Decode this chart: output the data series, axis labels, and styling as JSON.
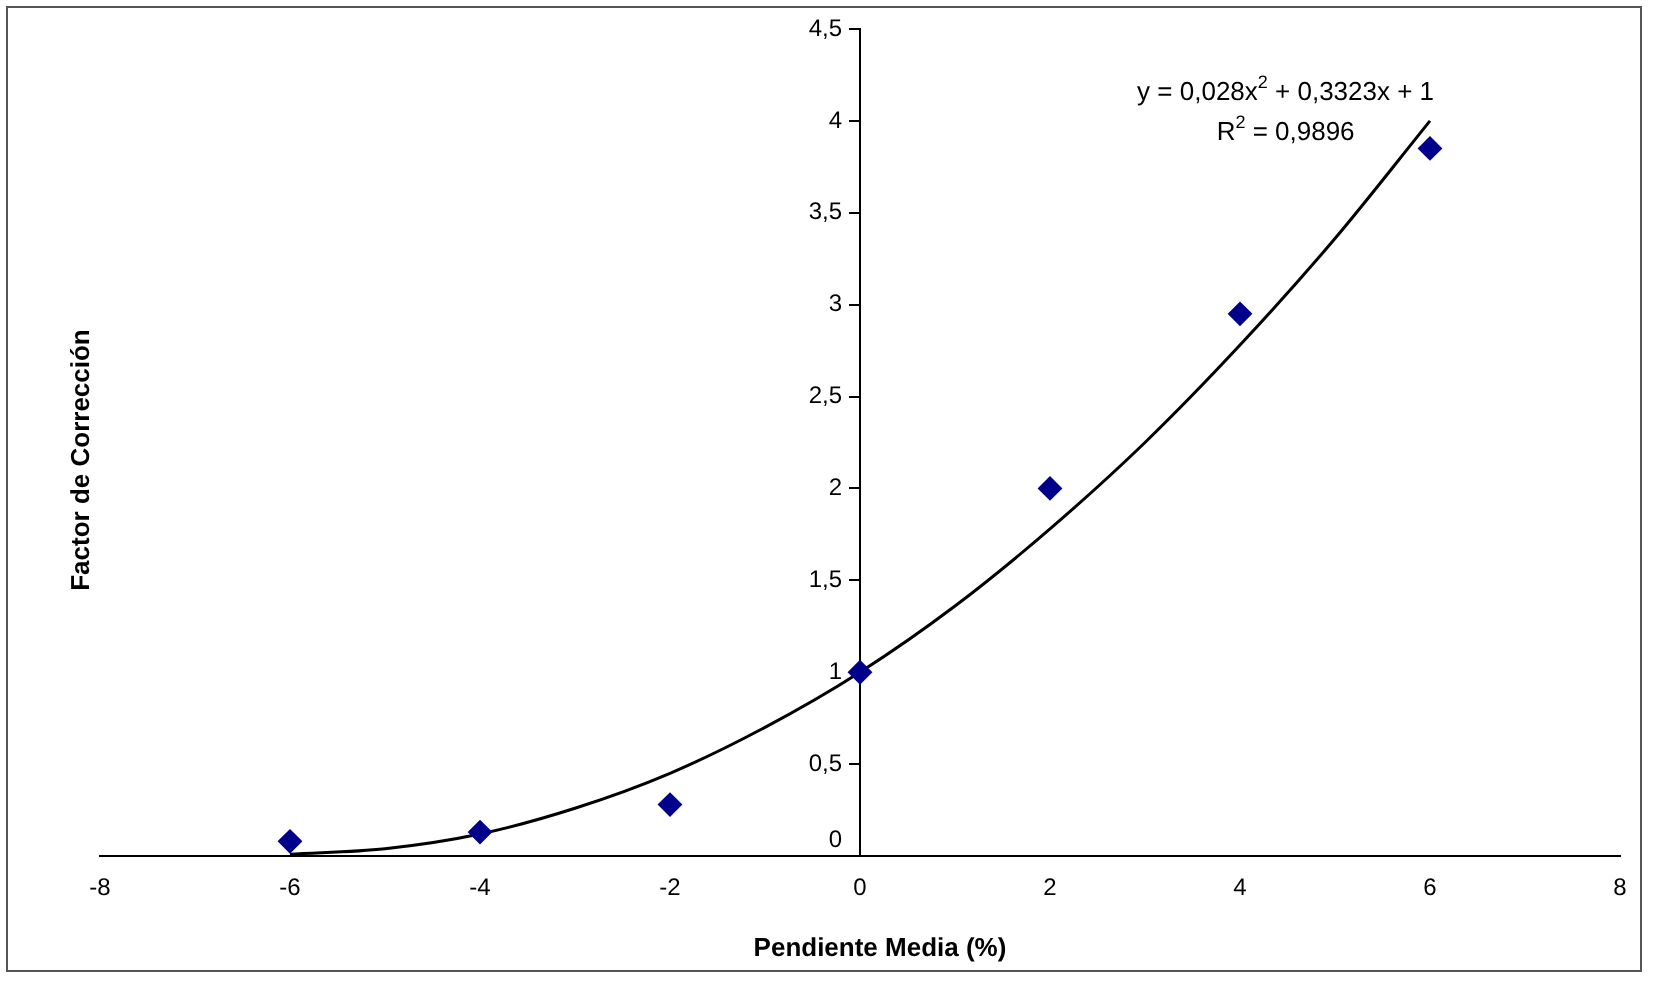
{
  "chart_data": {
    "type": "scatter",
    "xlabel": "Pendiente Media (%)",
    "ylabel": "Factor de Corrección",
    "xlim": [
      -8,
      8
    ],
    "xticks": [
      -8,
      -6,
      -4,
      -2,
      0,
      2,
      4,
      6,
      8
    ],
    "ylim": [
      0,
      4.5
    ],
    "yticks": [
      {
        "value": 0,
        "label": "0"
      },
      {
        "value": 0.5,
        "label": "0,5"
      },
      {
        "value": 1,
        "label": "1"
      },
      {
        "value": 1.5,
        "label": "1,5"
      },
      {
        "value": 2,
        "label": "2"
      },
      {
        "value": 2.5,
        "label": "2,5"
      },
      {
        "value": 3,
        "label": "3"
      },
      {
        "value": 3.5,
        "label": "3,5"
      },
      {
        "value": 4,
        "label": "4"
      },
      {
        "value": 4.5,
        "label": "4,5"
      }
    ],
    "grid": false,
    "legend": false,
    "annotations": [
      "y = 0,028x$^{2}$ + 0,3323x + 1",
      "R$^{2}$ = 0,9896"
    ],
    "series": [
      {
        "color": "#00008b",
        "marker": "diamond",
        "x": [
          -6,
          -4,
          -2,
          0,
          2,
          4,
          6
        ],
        "values": [
          0.08,
          0.13,
          0.28,
          1.0,
          2.0,
          2.95,
          3.85
        ]
      },
      {
        "type": "line",
        "color": "#000000",
        "marker": "none",
        "line_style": "solid",
        "x": [
          -6,
          -5,
          -4,
          -3,
          -2,
          -1,
          0,
          1,
          2,
          3,
          4,
          5,
          6
        ],
        "values": [
          0.01,
          0.04,
          0.12,
          0.26,
          0.45,
          0.7,
          1.0,
          1.36,
          1.78,
          2.25,
          2.78,
          3.36,
          4.0
        ]
      }
    ]
  }
}
